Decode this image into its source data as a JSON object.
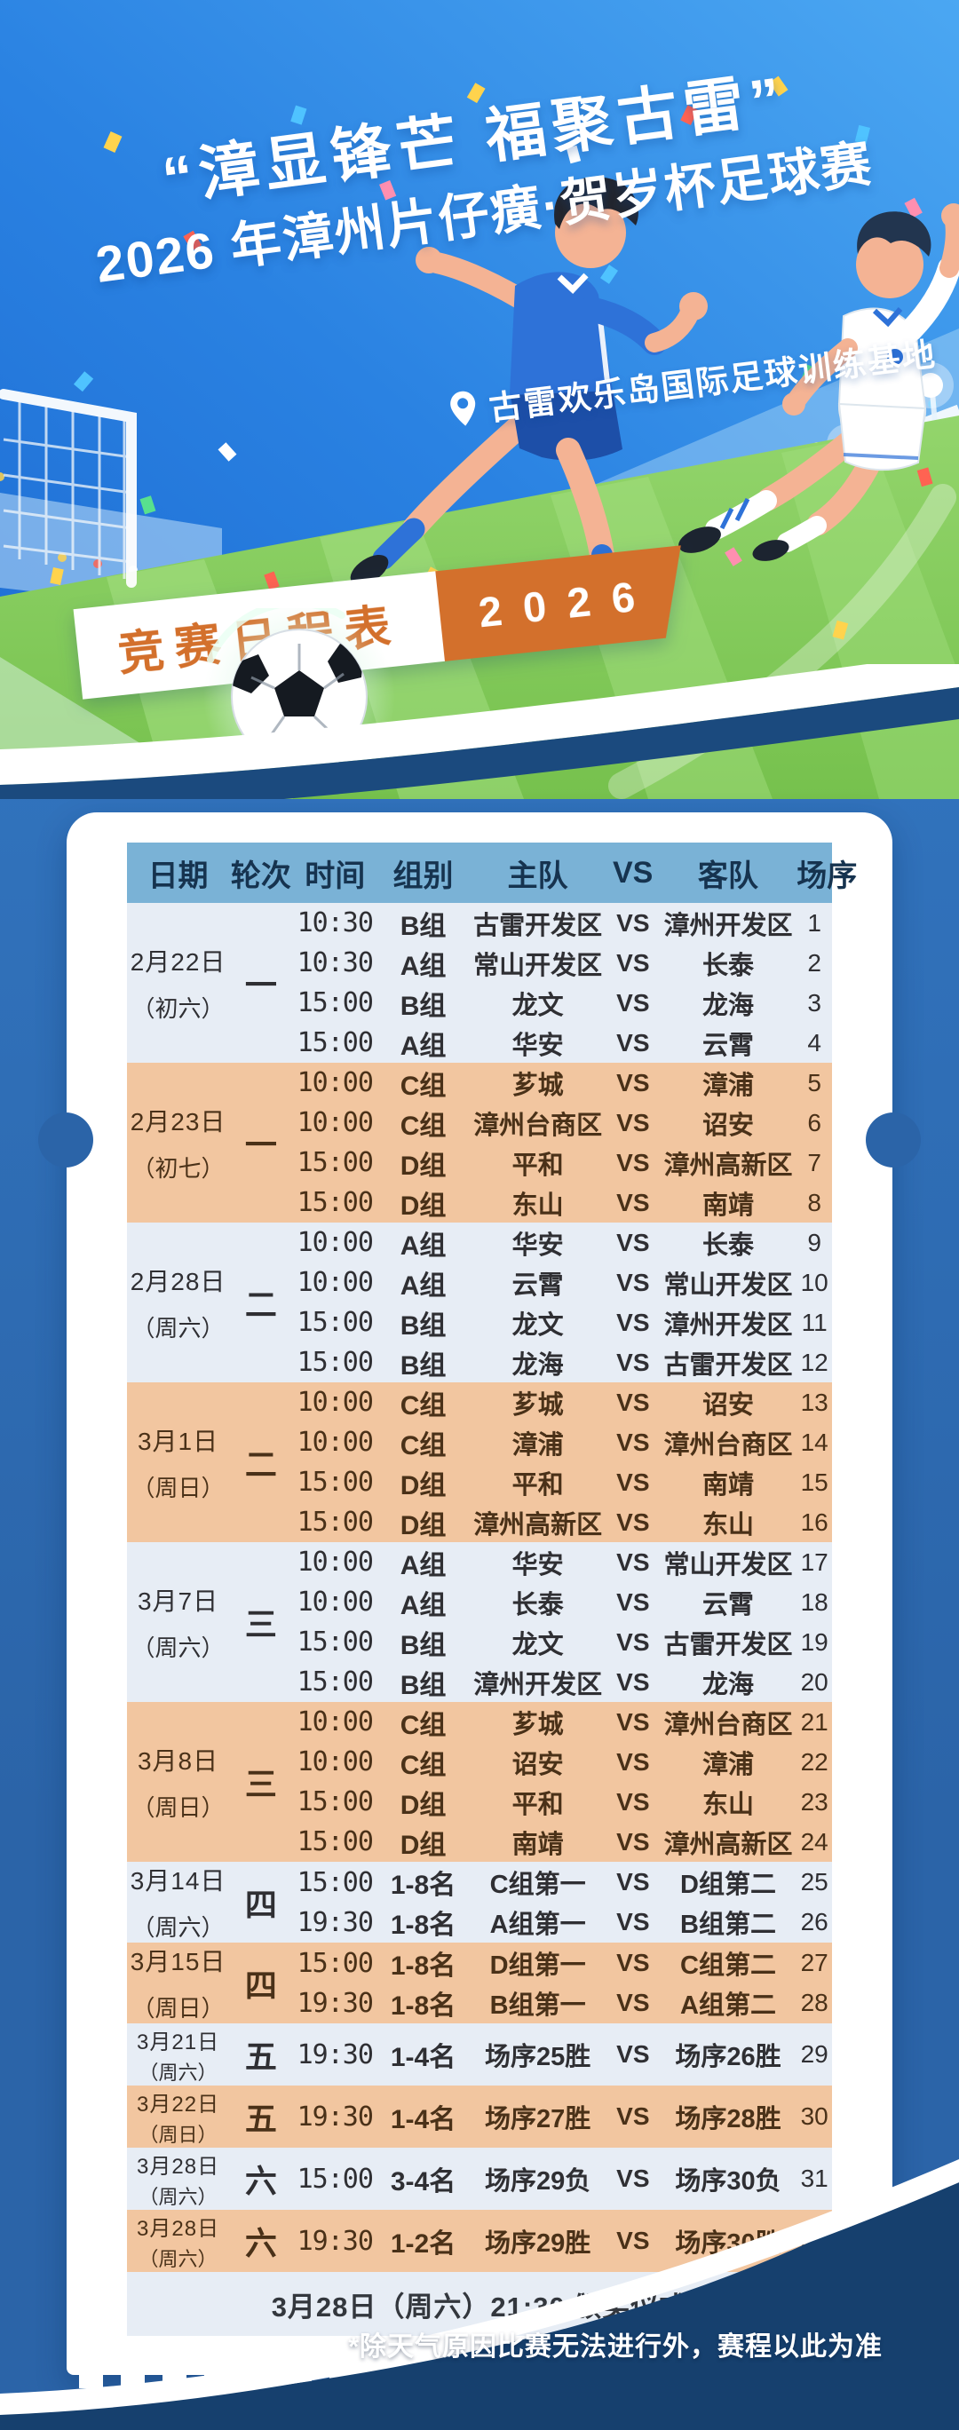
{
  "poster": {
    "title_line1": "“漳显锋芒 福聚古雷”",
    "title_line2": "2026 年漳州片仔癀·贺岁杯足球赛",
    "venue": "古雷欢乐岛国际足球训练基地",
    "banner_title": "竞赛日程表",
    "banner_year": "2026"
  },
  "icons": {
    "venue_pin": "location-pin-icon",
    "football": "football-icon"
  },
  "table": {
    "headers": [
      "日期",
      "轮次",
      "时间",
      "组别",
      "主队",
      "VS",
      "客队",
      "场序"
    ],
    "vs_label": "VS",
    "sections": [
      {
        "date": "2月22日",
        "day": "（初六）",
        "round": "一",
        "tone": "light",
        "matches": [
          {
            "time": "10:30",
            "group": "B组",
            "home": "古雷开发区",
            "away": "漳州开发区",
            "seq": "1"
          },
          {
            "time": "10:30",
            "group": "A组",
            "home": "常山开发区",
            "away": "长泰",
            "seq": "2"
          },
          {
            "time": "15:00",
            "group": "B组",
            "home": "龙文",
            "away": "龙海",
            "seq": "3"
          },
          {
            "time": "15:00",
            "group": "A组",
            "home": "华安",
            "away": "云霄",
            "seq": "4"
          }
        ]
      },
      {
        "date": "2月23日",
        "day": "（初七）",
        "round": "一",
        "tone": "orange",
        "matches": [
          {
            "time": "10:00",
            "group": "C组",
            "home": "芗城",
            "away": "漳浦",
            "seq": "5"
          },
          {
            "time": "10:00",
            "group": "C组",
            "home": "漳州台商区",
            "away": "诏安",
            "seq": "6"
          },
          {
            "time": "15:00",
            "group": "D组",
            "home": "平和",
            "away": "漳州高新区",
            "seq": "7"
          },
          {
            "time": "15:00",
            "group": "D组",
            "home": "东山",
            "away": "南靖",
            "seq": "8"
          }
        ]
      },
      {
        "date": "2月28日",
        "day": "（周六）",
        "round": "二",
        "tone": "light",
        "matches": [
          {
            "time": "10:00",
            "group": "A组",
            "home": "华安",
            "away": "长泰",
            "seq": "9"
          },
          {
            "time": "10:00",
            "group": "A组",
            "home": "云霄",
            "away": "常山开发区",
            "seq": "10"
          },
          {
            "time": "15:00",
            "group": "B组",
            "home": "龙文",
            "away": "漳州开发区",
            "seq": "11"
          },
          {
            "time": "15:00",
            "group": "B组",
            "home": "龙海",
            "away": "古雷开发区",
            "seq": "12"
          }
        ]
      },
      {
        "date": "3月1日",
        "day": "（周日）",
        "round": "二",
        "tone": "orange",
        "matches": [
          {
            "time": "10:00",
            "group": "C组",
            "home": "芗城",
            "away": "诏安",
            "seq": "13"
          },
          {
            "time": "10:00",
            "group": "C组",
            "home": "漳浦",
            "away": "漳州台商区",
            "seq": "14"
          },
          {
            "time": "15:00",
            "group": "D组",
            "home": "平和",
            "away": "南靖",
            "seq": "15"
          },
          {
            "time": "15:00",
            "group": "D组",
            "home": "漳州高新区",
            "away": "东山",
            "seq": "16"
          }
        ]
      },
      {
        "date": "3月7日",
        "day": "（周六）",
        "round": "三",
        "tone": "light",
        "matches": [
          {
            "time": "10:00",
            "group": "A组",
            "home": "华安",
            "away": "常山开发区",
            "seq": "17"
          },
          {
            "time": "10:00",
            "group": "A组",
            "home": "长泰",
            "away": "云霄",
            "seq": "18"
          },
          {
            "time": "15:00",
            "group": "B组",
            "home": "龙文",
            "away": "古雷开发区",
            "seq": "19"
          },
          {
            "time": "15:00",
            "group": "B组",
            "home": "漳州开发区",
            "away": "龙海",
            "seq": "20"
          }
        ]
      },
      {
        "date": "3月8日",
        "day": "（周日）",
        "round": "三",
        "tone": "orange",
        "matches": [
          {
            "time": "10:00",
            "group": "C组",
            "home": "芗城",
            "away": "漳州台商区",
            "seq": "21"
          },
          {
            "time": "10:00",
            "group": "C组",
            "home": "诏安",
            "away": "漳浦",
            "seq": "22"
          },
          {
            "time": "15:00",
            "group": "D组",
            "home": "平和",
            "away": "东山",
            "seq": "23"
          },
          {
            "time": "15:00",
            "group": "D组",
            "home": "南靖",
            "away": "漳州高新区",
            "seq": "24"
          }
        ]
      },
      {
        "date": "3月14日",
        "day": "（周六）",
        "round": "四",
        "tone": "light",
        "matches": [
          {
            "time": "15:00",
            "group": "1-8名",
            "home": "C组第一",
            "away": "D组第二",
            "seq": "25"
          },
          {
            "time": "19:30",
            "group": "1-8名",
            "home": "A组第一",
            "away": "B组第二",
            "seq": "26"
          }
        ]
      },
      {
        "date": "3月15日",
        "day": "（周日）",
        "round": "四",
        "tone": "orange",
        "matches": [
          {
            "time": "15:00",
            "group": "1-8名",
            "home": "D组第一",
            "away": "C组第二",
            "seq": "27"
          },
          {
            "time": "19:30",
            "group": "1-8名",
            "home": "B组第一",
            "away": "A组第二",
            "seq": "28"
          }
        ]
      },
      {
        "date": "3月21日",
        "day": "（周六）",
        "round": "五",
        "tone": "light",
        "matches": [
          {
            "time": "19:30",
            "group": "1-4名",
            "home": "场序25胜",
            "away": "场序26胜",
            "seq": "29"
          }
        ]
      },
      {
        "date": "3月22日",
        "day": "（周日）",
        "round": "五",
        "tone": "orange",
        "matches": [
          {
            "time": "19:30",
            "group": "1-4名",
            "home": "场序27胜",
            "away": "场序28胜",
            "seq": "30"
          }
        ]
      },
      {
        "date": "3月28日",
        "day": "（周六）",
        "round": "六",
        "tone": "light",
        "matches": [
          {
            "time": "15:00",
            "group": "3-4名",
            "home": "场序29负",
            "away": "场序30负",
            "seq": "31"
          }
        ]
      },
      {
        "date": "3月28日",
        "day": "（周六）",
        "round": "六",
        "tone": "orange",
        "matches": [
          {
            "time": "19:30",
            "group": "1-2名",
            "home": "场序29胜",
            "away": "场序30胜",
            "seq": "32"
          }
        ]
      }
    ],
    "footer_note": "3月28日（周六）21:30 颁奖仪式",
    "weather_note": "*除天气原因比赛无法进行外，赛程以此为准"
  },
  "colors": {
    "page_bg": "#2b64a8",
    "page_bg_light": "#3173bd",
    "navy": "#16406e",
    "card_bg": "#ffffff",
    "header_bg": "#7ab2d6",
    "header_text": "#16334f",
    "row_light_bg": "#e7edf5",
    "row_orange_bg": "#f2c6a0",
    "row_light_text": "#2f2f33",
    "row_orange_text": "#4a3118",
    "ribbon_orange": "#d3702c",
    "sky_top": "#4ba7f2",
    "sky_bottom": "#1d6bd2",
    "grass": "#85cc5e",
    "title_text": "#ffffff"
  }
}
